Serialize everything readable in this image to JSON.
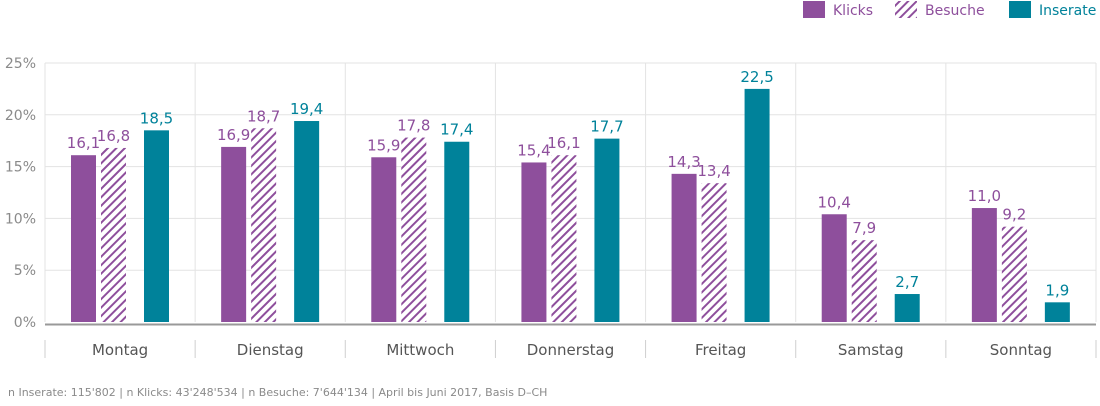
{
  "chart_data": {
    "type": "bar",
    "categories": [
      "Montag",
      "Dienstag",
      "Mittwoch",
      "Donnerstag",
      "Freitag",
      "Samstag",
      "Sonntag"
    ],
    "series": [
      {
        "name": "Klicks",
        "values": [
          16.1,
          16.9,
          15.9,
          15.4,
          14.3,
          10.4,
          11.0
        ],
        "labels": [
          "16,1",
          "16,9",
          "15,9",
          "15,4",
          "14,3",
          "10,4",
          "11,0"
        ],
        "style": "solid",
        "color": "#8e4f9c"
      },
      {
        "name": "Besuche",
        "values": [
          16.8,
          18.7,
          17.8,
          16.1,
          13.4,
          7.9,
          9.2
        ],
        "labels": [
          "16,8",
          "18,7",
          "17,8",
          "16,1",
          "13,4",
          "7,9",
          "9,2"
        ],
        "style": "hatched",
        "color": "#8e4f9c"
      },
      {
        "name": "Inserate",
        "values": [
          18.5,
          19.4,
          17.4,
          17.7,
          22.5,
          2.7,
          1.9
        ],
        "labels": [
          "18,5",
          "19,4",
          "17,4",
          "17,7",
          "22,5",
          "2,7",
          "1,9"
        ],
        "style": "solid",
        "color": "#00829a"
      }
    ],
    "y_ticks": [
      0,
      5,
      10,
      15,
      20,
      25
    ],
    "y_tick_labels": [
      "0%",
      "5%",
      "10%",
      "15%",
      "20%",
      "25%"
    ],
    "ylim": [
      0,
      25
    ],
    "grid": true,
    "legend_position": "top-right",
    "title": "",
    "xlabel": "",
    "ylabel": ""
  },
  "footnote": "n Inserate: 115'802 | n Klicks: 43'248'534 | n Besuche: 7'644'134 | April bis Juni 2017, Basis D–CH"
}
